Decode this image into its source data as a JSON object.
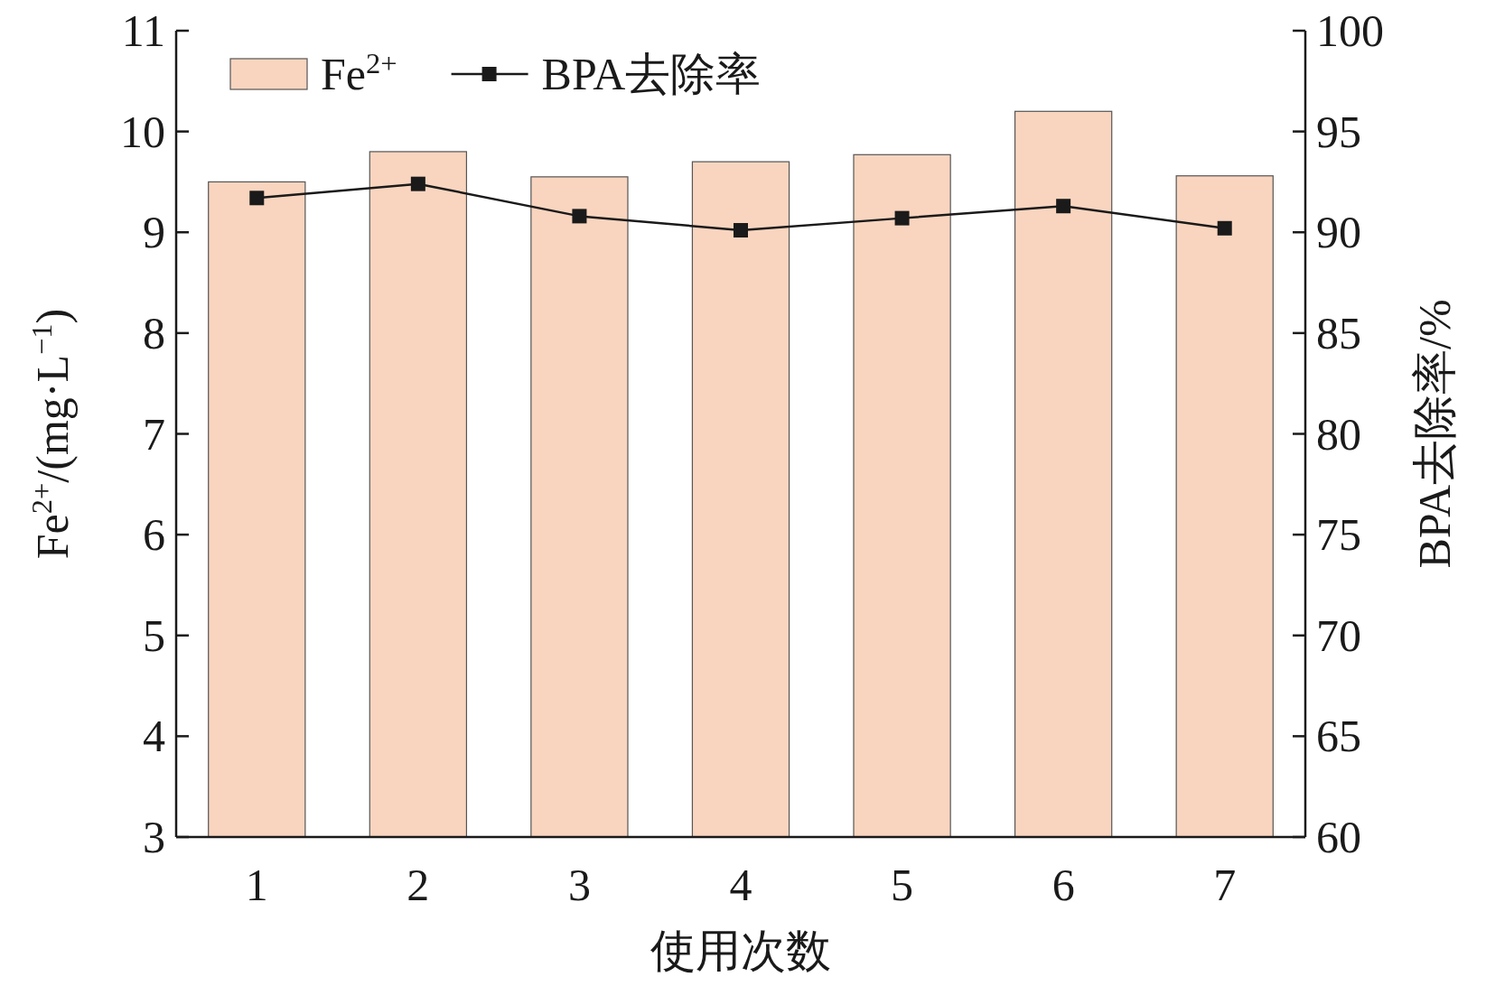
{
  "chart_data": {
    "type": "bar",
    "categories": [
      "1",
      "2",
      "3",
      "4",
      "5",
      "6",
      "7"
    ],
    "series": [
      {
        "name": "Fe$^{2+}$",
        "color": "#f9d5bf",
        "values": [
          9.5,
          9.8,
          9.55,
          9.7,
          9.77,
          10.2,
          9.56
        ]
      },
      {
        "name": "BPA去除率",
        "type": "line",
        "axis": "y2",
        "color": "#1a1a1a",
        "values": [
          91.7,
          92.4,
          90.8,
          90.1,
          90.7,
          91.3,
          90.2
        ]
      }
    ],
    "xlabel": "使用次数",
    "ylabel": "Fe$^{2+}$/(mg·L$^{−1}$)",
    "y2label": "BPA去除率/%",
    "ylim": [
      3,
      11
    ],
    "yticks": [
      3,
      4,
      5,
      6,
      7,
      8,
      9,
      10,
      11
    ],
    "y2lim": [
      60,
      100
    ],
    "y2ticks": [
      60,
      65,
      70,
      75,
      80,
      85,
      90,
      95,
      100
    ],
    "legend": "top left",
    "marker": "square",
    "line_style": "solid",
    "grid": false
  }
}
